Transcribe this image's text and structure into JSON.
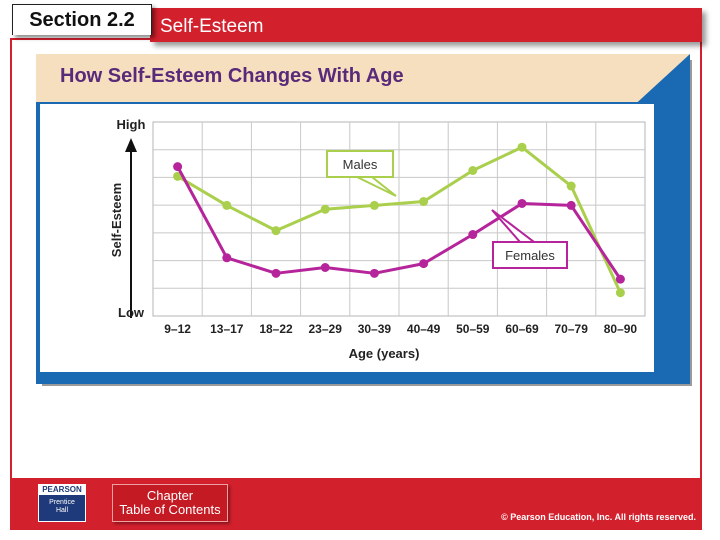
{
  "header": {
    "section_label": "Section 2.2",
    "title": "Self-Esteem"
  },
  "figure": {
    "title": "How Self-Esteem Changes With Age"
  },
  "chart_data": {
    "type": "line",
    "title": "How Self-Esteem Changes With Age",
    "xlabel": "Age (years)",
    "ylabel": "Self-Esteem",
    "y_high_label": "High",
    "y_low_label": "Low",
    "categories": [
      "9–12",
      "13–17",
      "18–22",
      "23–29",
      "30–39",
      "40–49",
      "50–59",
      "60–69",
      "70–79",
      "80–90"
    ],
    "ylim": [
      0,
      100
    ],
    "grid": true,
    "series": [
      {
        "name": "Males",
        "color": "#a9cf4c",
        "values": [
          72,
          57,
          44,
          55,
          57,
          59,
          75,
          87,
          67,
          12
        ]
      },
      {
        "name": "Females",
        "color": "#b5249a",
        "values": [
          77,
          30,
          22,
          25,
          22,
          27,
          42,
          58,
          57,
          19
        ]
      }
    ]
  },
  "footer": {
    "logo_top": "PEARSON",
    "logo_line1": "Prentice",
    "logo_line2": "Hall",
    "toc_line1": "Chapter",
    "toc_line2": "Table of Contents",
    "copyright": "© Pearson Education, Inc. All rights reserved."
  }
}
